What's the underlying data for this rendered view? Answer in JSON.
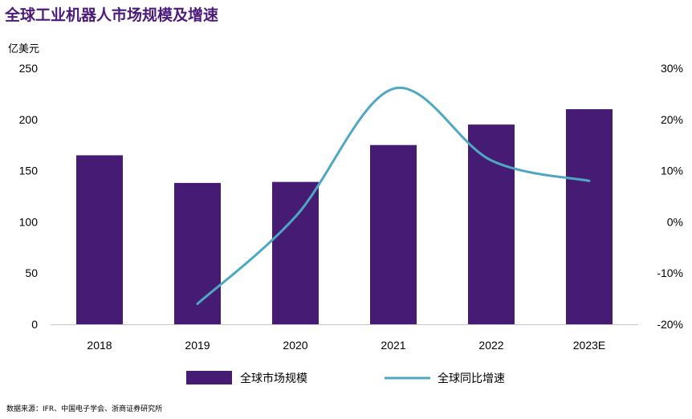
{
  "title": "全球工业机器人市场规模及增速",
  "unit_label": "亿美元",
  "source": "数据来源：IFR、中国电子学会、浙商证券研究所",
  "colors": {
    "bar": "#461b73",
    "line": "#4ea8c4",
    "title": "#4b1a7a"
  },
  "chart_data": {
    "type": "bar",
    "title": "全球工业机器人市场规模及增速",
    "categories": [
      "2018",
      "2019",
      "2020",
      "2021",
      "2022",
      "2023E"
    ],
    "series": [
      {
        "name": "全球市场规模",
        "type": "bar",
        "axis": "left",
        "values": [
          165,
          138,
          139,
          175,
          195,
          210
        ]
      },
      {
        "name": "全球同比增速",
        "type": "line",
        "axis": "right",
        "values": [
          null,
          -16,
          1,
          26,
          12,
          8
        ]
      }
    ],
    "ylabel": "亿美元",
    "ylim": [
      0,
      250
    ],
    "y_ticks": [
      "0",
      "50",
      "100",
      "150",
      "200",
      "250"
    ],
    "y2lim": [
      -20,
      30
    ],
    "y2_ticks": [
      "-20%",
      "-10%",
      "0%",
      "10%",
      "20%",
      "30%"
    ],
    "legend": {
      "position": "bottom",
      "items": [
        "全球市场规模",
        "全球同比增速"
      ]
    }
  }
}
